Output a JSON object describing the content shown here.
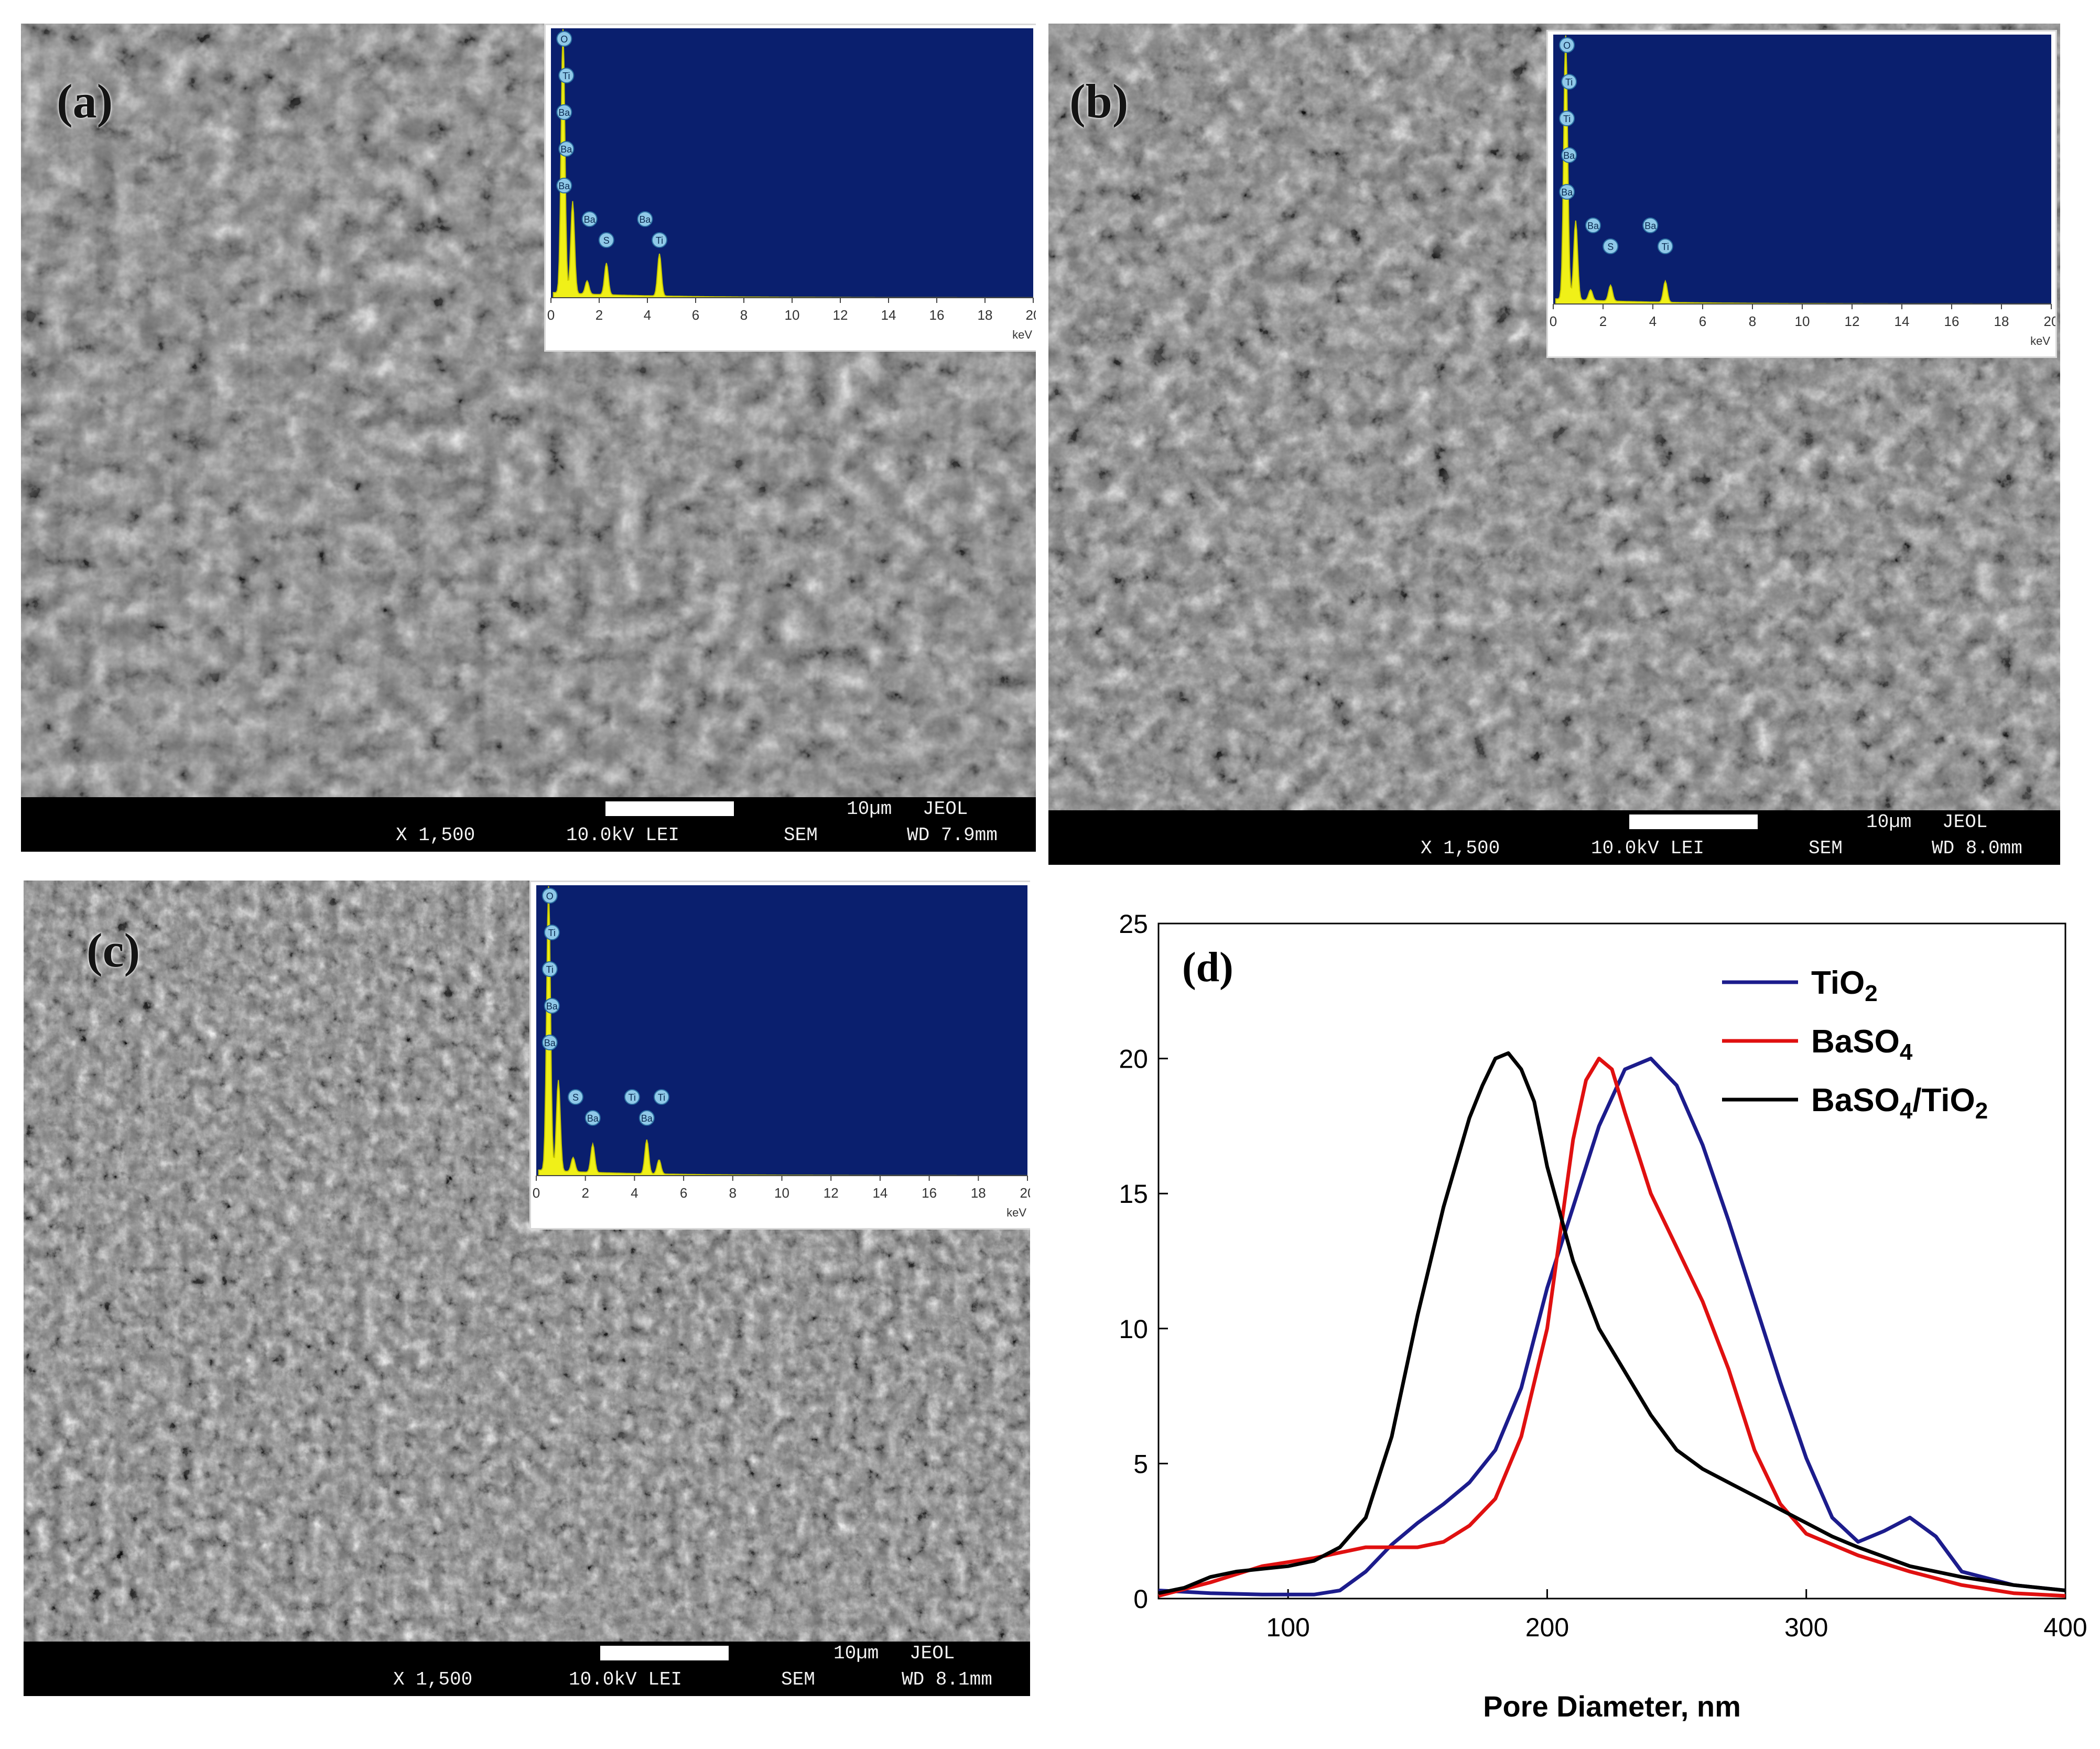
{
  "figure": {
    "panels": [
      {
        "label": "(a)",
        "info": {
          "magnification": "X 1,500",
          "voltage": "10.0kV LEI",
          "mode": "SEM",
          "scale": "10µm",
          "maker": "JEOL",
          "wd": "WD 7.9mm"
        },
        "eds": {
          "axis_ticks": [
            "0",
            "2",
            "4",
            "6",
            "8",
            "10",
            "12",
            "14",
            "16",
            "18",
            "20"
          ],
          "unit": "keV",
          "peak_labels": [
            "O",
            "Ti",
            "Ba",
            "Ba",
            "Ba",
            "Ba",
            "S",
            "Ba",
            "Ti"
          ]
        }
      },
      {
        "label": "(b)",
        "info": {
          "magnification": "X 1,500",
          "voltage": "10.0kV LEI",
          "mode": "SEM",
          "scale": "10µm",
          "maker": "JEOL",
          "wd": "WD 8.0mm"
        },
        "eds": {
          "axis_ticks": [
            "0",
            "2",
            "4",
            "6",
            "8",
            "10",
            "12",
            "14",
            "16",
            "18",
            "20"
          ],
          "unit": "keV",
          "peak_labels": [
            "O",
            "Ti",
            "Ti",
            "Ba",
            "Ba",
            "Ba",
            "S",
            "Ba",
            "Ti"
          ]
        }
      },
      {
        "label": "(c)",
        "info": {
          "magnification": "X 1,500",
          "voltage": "10.0kV LEI",
          "mode": "SEM",
          "scale": "10µm",
          "maker": "JEOL",
          "wd": "WD 8.1mm"
        },
        "eds": {
          "axis_ticks": [
            "0",
            "2",
            "4",
            "6",
            "8",
            "10",
            "12",
            "14",
            "16",
            "18",
            "20"
          ],
          "unit": "keV",
          "peak_labels": [
            "O",
            "Ti",
            "Ti",
            "Ba",
            "Ba",
            "S",
            "Ba",
            "Ti",
            "Ba",
            "Ti"
          ]
        }
      }
    ]
  },
  "chart_data": {
    "type": "line",
    "panel_label": "(d)",
    "xlabel": "Pore Diameter, nm",
    "ylabel": "",
    "xlim": [
      50,
      400
    ],
    "ylim": [
      0,
      25
    ],
    "xticks": [
      100,
      200,
      300,
      400
    ],
    "yticks": [
      0,
      5,
      10,
      15,
      20,
      25
    ],
    "legend_position": "top-right",
    "series": [
      {
        "name": "TiO2",
        "color": "#1c1c8c",
        "x": [
          50,
          70,
          90,
          110,
          120,
          130,
          140,
          150,
          160,
          170,
          180,
          190,
          200,
          210,
          220,
          230,
          240,
          250,
          260,
          270,
          280,
          290,
          300,
          310,
          320,
          330,
          340,
          350,
          360,
          380,
          400
        ],
        "y": [
          0.3,
          0.2,
          0.15,
          0.15,
          0.3,
          1.0,
          2.0,
          2.8,
          3.5,
          4.3,
          5.5,
          7.8,
          11.5,
          14.5,
          17.5,
          19.6,
          20.0,
          19.0,
          16.8,
          14.0,
          11.0,
          8.0,
          5.2,
          3.0,
          2.1,
          2.5,
          3.0,
          2.3,
          1.0,
          0.5,
          0.3
        ]
      },
      {
        "name": "BaSO4",
        "color": "#e01010",
        "x": [
          50,
          70,
          90,
          110,
          130,
          150,
          160,
          170,
          180,
          190,
          200,
          205,
          210,
          215,
          220,
          225,
          230,
          240,
          250,
          260,
          270,
          280,
          290,
          300,
          320,
          340,
          360,
          380,
          400
        ],
        "y": [
          0.1,
          0.6,
          1.2,
          1.5,
          1.9,
          1.9,
          2.1,
          2.7,
          3.7,
          6.0,
          10.0,
          13.5,
          17.0,
          19.2,
          20.0,
          19.6,
          18.0,
          15.0,
          13.0,
          11.0,
          8.5,
          5.5,
          3.5,
          2.4,
          1.6,
          1.0,
          0.5,
          0.2,
          0.1
        ]
      },
      {
        "name": "BaSO4/TiO2",
        "color": "#000000",
        "x": [
          50,
          60,
          70,
          80,
          90,
          100,
          110,
          120,
          130,
          140,
          150,
          160,
          170,
          175,
          180,
          185,
          190,
          195,
          200,
          210,
          220,
          230,
          240,
          250,
          260,
          270,
          280,
          290,
          300,
          310,
          320,
          340,
          360,
          380,
          400
        ],
        "y": [
          0.2,
          0.4,
          0.8,
          1.0,
          1.1,
          1.2,
          1.4,
          1.9,
          3.0,
          6.0,
          10.5,
          14.5,
          17.8,
          19.0,
          20.0,
          20.2,
          19.6,
          18.4,
          16.0,
          12.5,
          10.0,
          8.4,
          6.8,
          5.5,
          4.8,
          4.3,
          3.8,
          3.3,
          2.8,
          2.3,
          1.9,
          1.2,
          0.8,
          0.5,
          0.3
        ]
      }
    ]
  }
}
